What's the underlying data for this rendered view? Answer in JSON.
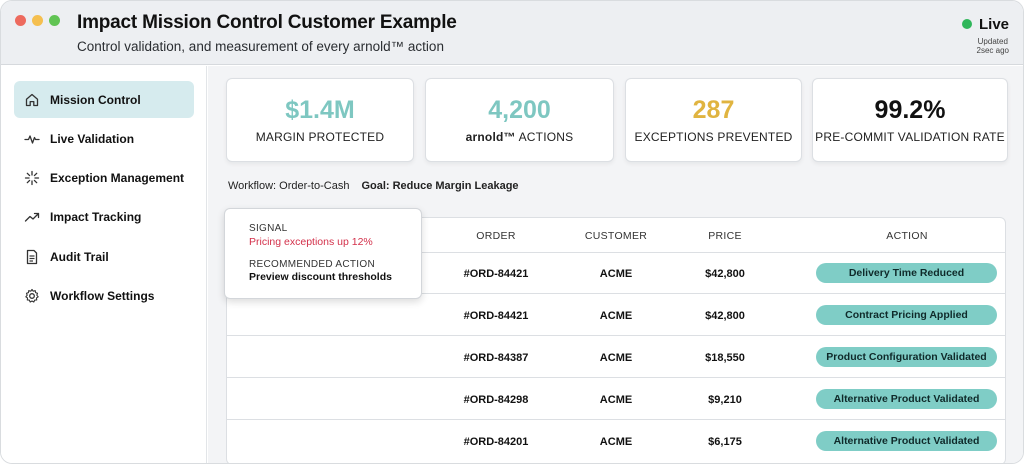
{
  "window": {
    "title": "Impact Mission Control Customer Example",
    "subtitle": "Control validation, and measurement of every arnold™ action",
    "status": {
      "label": "Live",
      "updated_line1": "Updated",
      "updated_line2": "2sec ago"
    }
  },
  "sidebar": {
    "items": [
      {
        "label": "Mission Control",
        "icon": "home-icon",
        "active": true
      },
      {
        "label": "Live Validation",
        "icon": "pulse-icon",
        "active": false
      },
      {
        "label": "Exception Management",
        "icon": "burst-icon",
        "active": false
      },
      {
        "label": "Impact Tracking",
        "icon": "trend-icon",
        "active": false
      },
      {
        "label": "Audit Trail",
        "icon": "document-icon",
        "active": false
      },
      {
        "label": "Workflow Settings",
        "icon": "gear-icon",
        "active": false
      }
    ]
  },
  "kpis": [
    {
      "value": "$1.4M",
      "label": "MARGIN PROTECTED",
      "color": "#7ec7c1"
    },
    {
      "value": "4,200",
      "label_strong": "arnold™",
      "label": " ACTIONS",
      "color": "#7ec7c1"
    },
    {
      "value": "287",
      "label": "EXCEPTIONS PREVENTED",
      "color": "#e0b440"
    },
    {
      "value": "99.2%",
      "label": "PRE-COMMIT VALIDATION RATE",
      "color": "#111111"
    }
  ],
  "workflow": {
    "label": "Workflow: Order-to-Cash",
    "goal": "Goal: Reduce Margin Leakage"
  },
  "table": {
    "columns": [
      "ORDER",
      "CUSTOMER",
      "PRICE",
      "ACTION"
    ],
    "rows": [
      {
        "order": "#ORD-84421",
        "customer": "ACME",
        "price": "$42,800",
        "action": "Delivery Time Reduced"
      },
      {
        "order": "#ORD-84421",
        "customer": "ACME",
        "price": "$42,800",
        "action": "Contract Pricing Applied"
      },
      {
        "order": "#ORD-84387",
        "customer": "ACME",
        "price": "$18,550",
        "action": "Product Configuration Validated"
      },
      {
        "order": "#ORD-84298",
        "customer": "ACME",
        "price": "$9,210",
        "action": "Alternative Product Validated"
      },
      {
        "order": "#ORD-84201",
        "customer": "ACME",
        "price": "$6,175",
        "action": "Alternative Product Validated"
      }
    ]
  },
  "tooltip": {
    "signal_heading": "SIGNAL",
    "signal_text": "Pricing exceptions up 12%",
    "action_heading": "RECOMMENDED ACTION",
    "action_text": "Preview discount thresholds"
  },
  "colors": {
    "accent": "#7fcdc6",
    "nav_active": "#d6ebee",
    "live": "#2fb65a",
    "signal": "#d3304a"
  }
}
